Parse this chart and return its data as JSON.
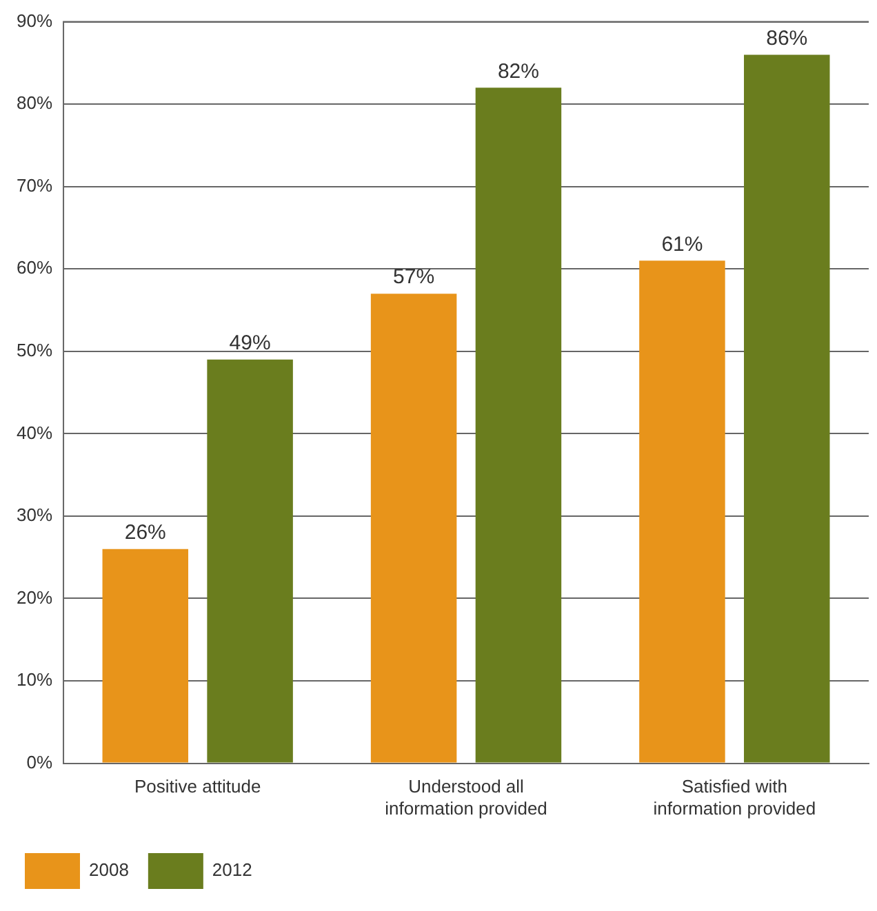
{
  "chart_data": {
    "type": "bar",
    "categories": [
      "Positive attitude",
      "Understood all information provided",
      "Satisfied with information provided"
    ],
    "series": [
      {
        "name": "2008",
        "color": "#e8941a",
        "values": [
          26,
          57,
          61
        ]
      },
      {
        "name": "2012",
        "color": "#6a7d1e",
        "values": [
          49,
          82,
          86
        ]
      }
    ],
    "ylim": [
      0,
      90
    ],
    "yticks": [
      {
        "value": 0,
        "label": "0%"
      },
      {
        "value": 10,
        "label": "10%"
      },
      {
        "value": 20,
        "label": "20%"
      },
      {
        "value": 30,
        "label": "30%"
      },
      {
        "value": 40,
        "label": "40%"
      },
      {
        "value": 50,
        "label": "50%"
      },
      {
        "value": 60,
        "label": "60%"
      },
      {
        "value": 70,
        "label": "70%"
      },
      {
        "value": 80,
        "label": "80%"
      },
      {
        "value": 90,
        "label": "90%"
      }
    ],
    "value_labels": [
      [
        "26%",
        "57%",
        "61%"
      ],
      [
        "49%",
        "82%",
        "86%"
      ]
    ],
    "grid": "y",
    "legend": "bottom left"
  }
}
